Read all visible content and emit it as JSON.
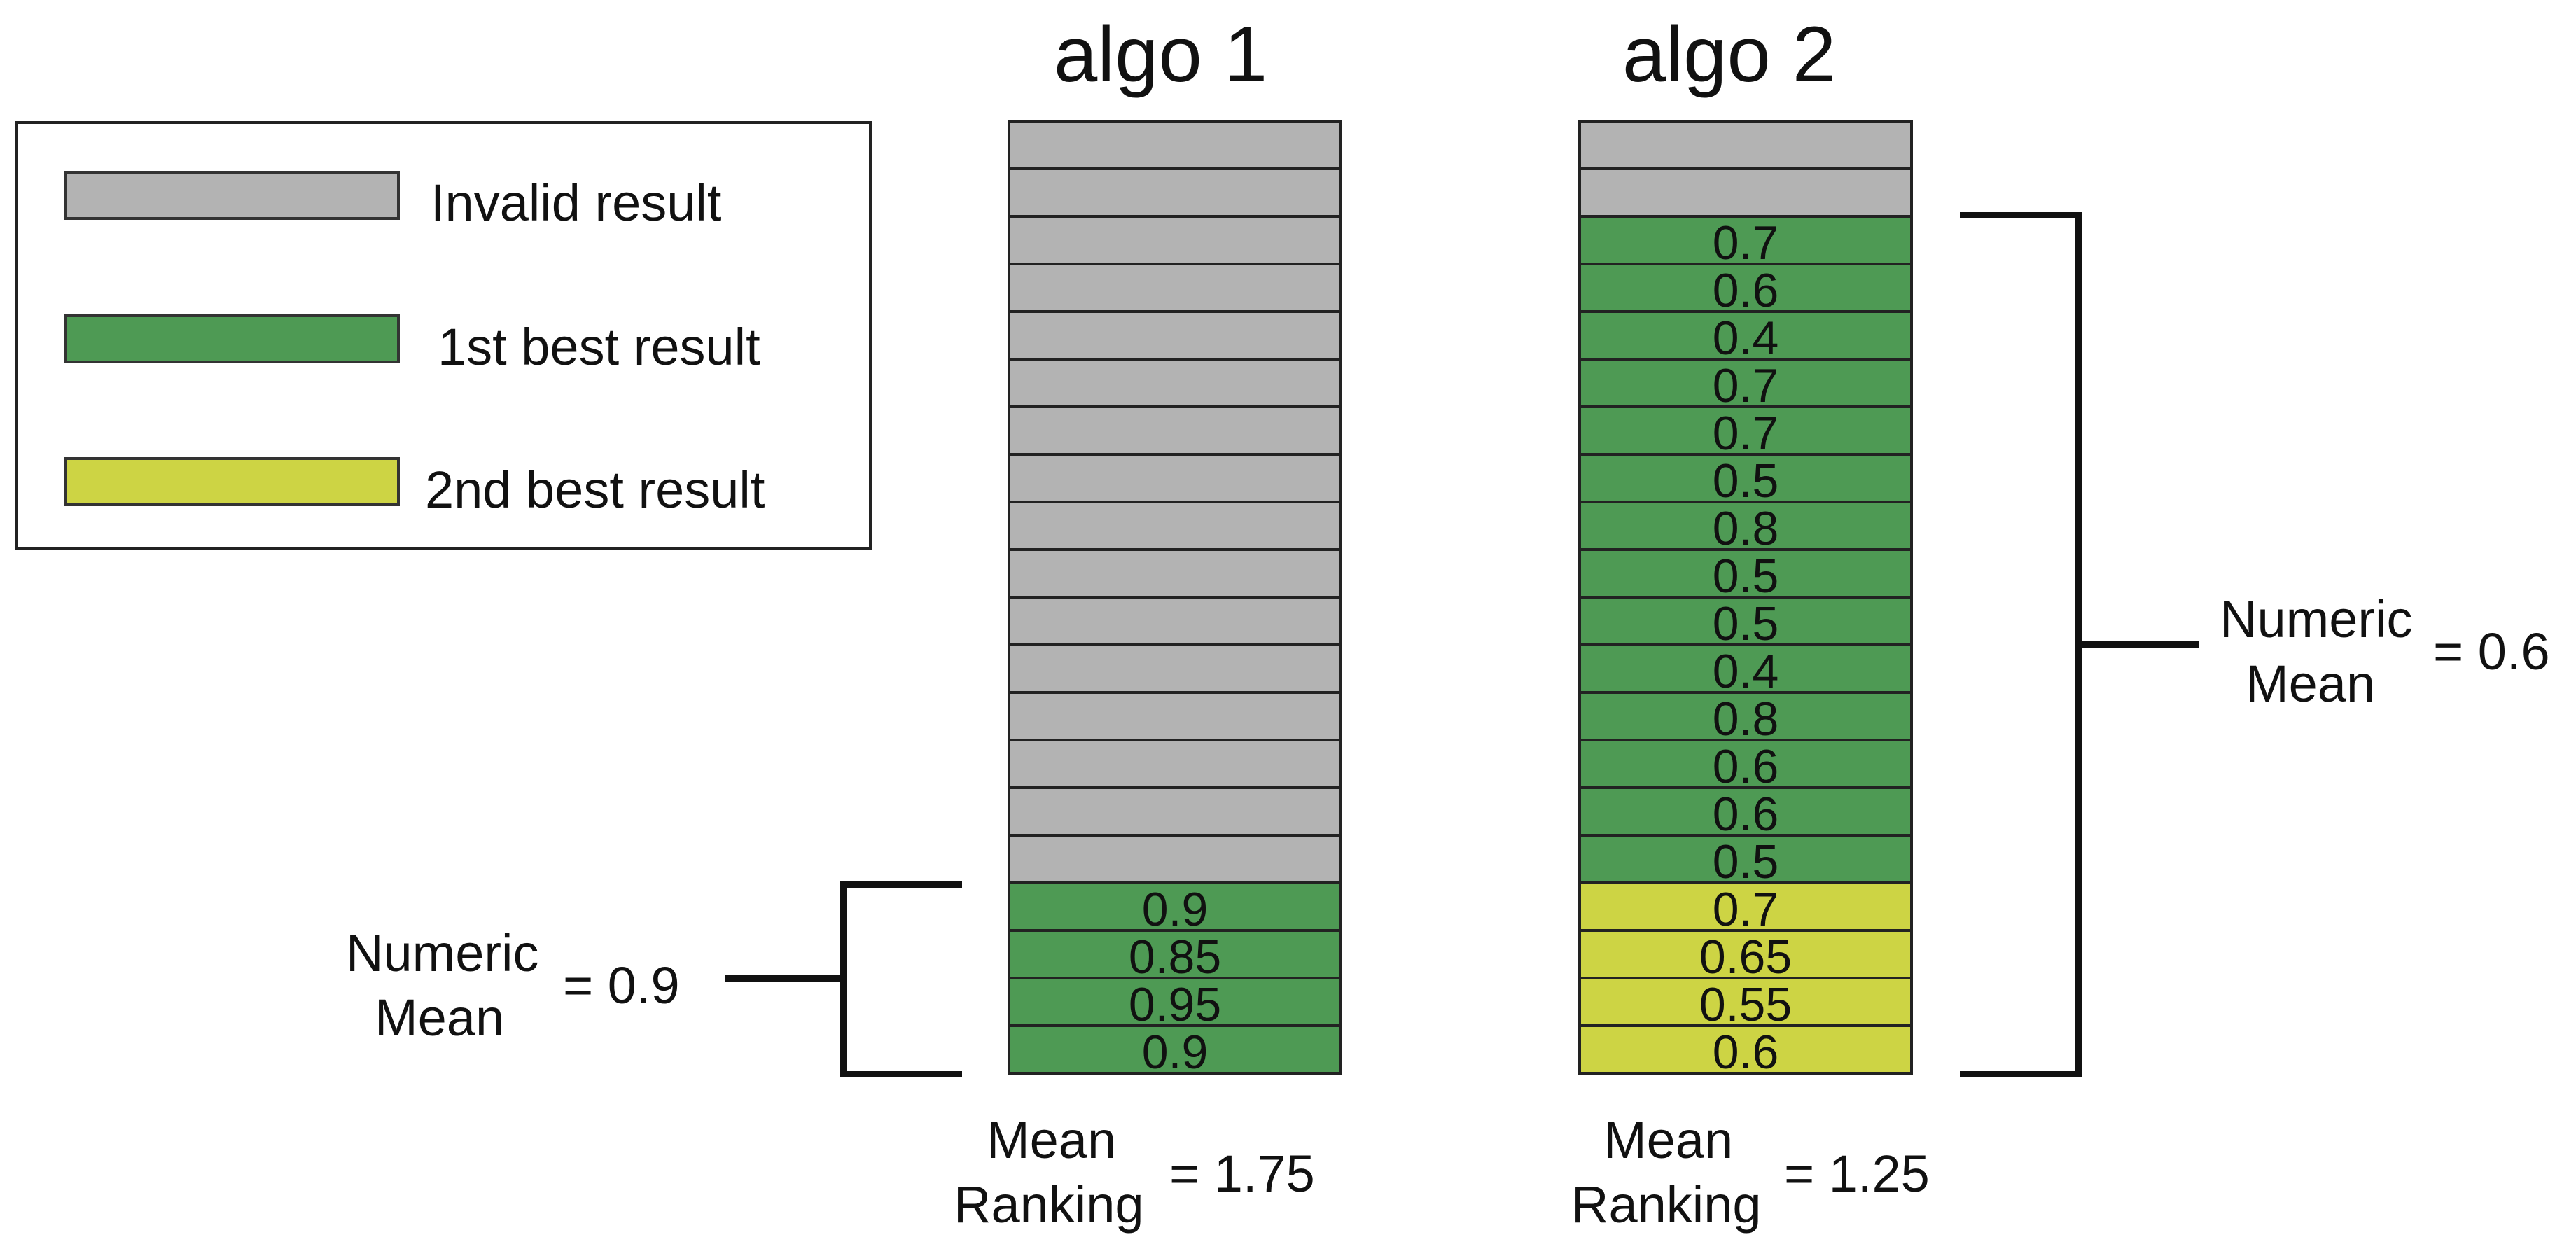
{
  "legend": {
    "items": [
      {
        "label": "Invalid result",
        "color": "#b3b3b3"
      },
      {
        "label": "1st best result",
        "color": "#4e9a54"
      },
      {
        "label": "2nd best result",
        "color": "#cdd444"
      }
    ]
  },
  "colors": {
    "invalid": "#b3b3b3",
    "best1": "#4e9a54",
    "best2": "#cdd444",
    "line": "#111111"
  },
  "algo1": {
    "title": "algo 1",
    "invalid_count": 16,
    "cells": [
      {
        "value": "0.9",
        "rank": 1
      },
      {
        "value": "0.85",
        "rank": 1
      },
      {
        "value": "0.95",
        "rank": 1
      },
      {
        "value": "0.9",
        "rank": 1
      }
    ],
    "numeric_mean": {
      "label_line1": "Numeric",
      "label_line2": "Mean",
      "value": "= 0.9"
    },
    "mean_ranking": {
      "label_line1": "Mean",
      "label_line2": "Ranking",
      "value": "= 1.75"
    }
  },
  "algo2": {
    "title": "algo 2",
    "invalid_count": 2,
    "cells": [
      {
        "value": "0.7",
        "rank": 1
      },
      {
        "value": "0.6",
        "rank": 1
      },
      {
        "value": "0.4",
        "rank": 1
      },
      {
        "value": "0.7",
        "rank": 1
      },
      {
        "value": "0.7",
        "rank": 1
      },
      {
        "value": "0.5",
        "rank": 1
      },
      {
        "value": "0.8",
        "rank": 1
      },
      {
        "value": "0.5",
        "rank": 1
      },
      {
        "value": "0.5",
        "rank": 1
      },
      {
        "value": "0.4",
        "rank": 1
      },
      {
        "value": "0.8",
        "rank": 1
      },
      {
        "value": "0.6",
        "rank": 1
      },
      {
        "value": "0.6",
        "rank": 1
      },
      {
        "value": "0.5",
        "rank": 1
      },
      {
        "value": "0.7",
        "rank": 2
      },
      {
        "value": "0.65",
        "rank": 2
      },
      {
        "value": "0.55",
        "rank": 2
      },
      {
        "value": "0.6",
        "rank": 2
      }
    ],
    "numeric_mean": {
      "label_line1": "Numeric",
      "label_line2": "Mean",
      "value": "= 0.6"
    },
    "mean_ranking": {
      "label_line1": "Mean",
      "label_line2": "Ranking",
      "value": "= 1.25"
    }
  }
}
